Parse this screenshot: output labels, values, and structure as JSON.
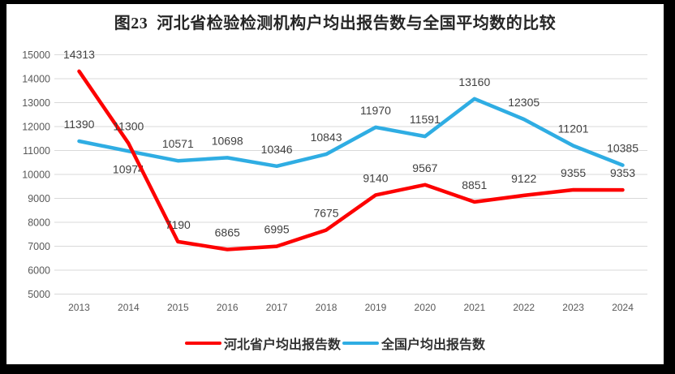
{
  "title": "图23  河北省检验检测机构户均出报告数与全国平均数的比较",
  "chart_data": {
    "type": "line",
    "categories": [
      "2013",
      "2014",
      "2015",
      "2016",
      "2017",
      "2018",
      "2019",
      "2020",
      "2021",
      "2022",
      "2023",
      "2024"
    ],
    "series": [
      {
        "name": "河北省户均出报告数",
        "color": "#FD0000",
        "values": [
          14313,
          11300,
          7190,
          6865,
          6995,
          7675,
          9140,
          9567,
          8851,
          9122,
          9355,
          9353
        ],
        "label_positions": [
          "above",
          "above",
          "above",
          "above",
          "above",
          "above",
          "above",
          "above",
          "above",
          "above",
          "above",
          "above"
        ]
      },
      {
        "name": "全国户均出报告数",
        "color": "#2FADE3",
        "values": [
          11390,
          10974,
          10571,
          10698,
          10346,
          10843,
          11970,
          11591,
          13160,
          12305,
          11201,
          10385
        ],
        "label_positions": [
          "above",
          "below",
          "above",
          "above",
          "above",
          "above",
          "above",
          "above",
          "above",
          "above",
          "above",
          "above"
        ]
      }
    ],
    "xlabel": "",
    "ylabel": "",
    "ylim": [
      5000,
      15000
    ],
    "yticks": [
      5000,
      6000,
      7000,
      8000,
      9000,
      10000,
      11000,
      12000,
      13000,
      14000,
      15000
    ],
    "grid": "horizontal",
    "legend_position": "bottom"
  },
  "colors": {
    "background": "#FFFFFF",
    "frame_border": "#000000",
    "gridline": "#D9D9D9",
    "axis_label": "#595959",
    "data_label": "#404040",
    "title_text": "#262626"
  }
}
